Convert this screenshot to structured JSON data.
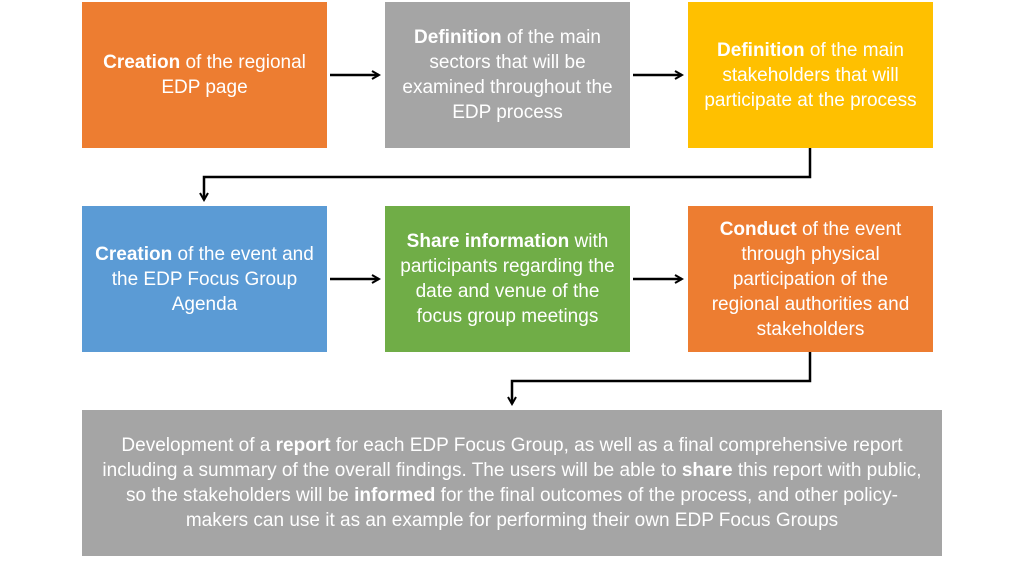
{
  "colors": {
    "orange": "#ED7D31",
    "gray": "#A5A5A5",
    "gold": "#FFC000",
    "blue": "#5B9BD5",
    "green": "#70AD47",
    "arrow": "#000000"
  },
  "steps": [
    {
      "bold": "Creation",
      "text": " of the regional EDP page"
    },
    {
      "bold": "Definition",
      "text": " of the main sectors that will be examined throughout the EDP process"
    },
    {
      "bold": "Definition",
      "text": " of the main stakeholders that will participate at the process"
    },
    {
      "bold": "Creation",
      "text": " of the event and the EDP Focus Group Agenda"
    },
    {
      "bold": "Share information",
      "text": " with participants regarding the date and venue of the focus group meetings"
    },
    {
      "bold": "Conduct",
      "text": " of the event through physical participation of the regional authorities and stakeholders"
    }
  ],
  "final_step": {
    "t1": "Development of a ",
    "b1": "report",
    "t2": " for each EDP Focus Group, as well as a final comprehensive report including a summary of the overall findings. The users will be able to ",
    "b2": "share",
    "t3": " this report with public, so the stakeholders will be ",
    "b3": "informed",
    "t4": " for the final outcomes of the process, and other policy-makers can use it as an example for performing their own EDP Focus Groups"
  }
}
